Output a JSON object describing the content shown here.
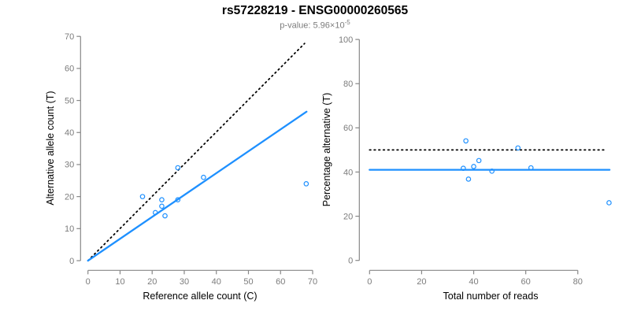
{
  "header": {
    "title": "rs57228219 - ENSG00000260565",
    "pvalue_label": "p-value: 5.96×10",
    "pvalue_exponent": "-5"
  },
  "colors": {
    "accent_blue": "#1E90FF",
    "line_black": "#000000",
    "axis_gray": "#878787",
    "tick_label_gray": "#7c7c7c"
  },
  "chart_data": [
    {
      "type": "scatter",
      "xlabel": "Reference allele count (C)",
      "ylabel": "Alternative allele count (T)",
      "xlim": [
        0,
        70
      ],
      "ylim": [
        0,
        70
      ],
      "xticks": [
        0,
        10,
        20,
        30,
        40,
        50,
        60,
        70
      ],
      "yticks": [
        0,
        10,
        20,
        30,
        40,
        50,
        60,
        70
      ],
      "grid": false,
      "legend": false,
      "point_color": "#1E90FF",
      "points": [
        [
          17,
          20
        ],
        [
          21,
          15
        ],
        [
          23,
          17
        ],
        [
          23,
          19
        ],
        [
          24,
          14
        ],
        [
          28,
          19
        ],
        [
          28,
          29
        ],
        [
          36,
          26
        ],
        [
          68,
          24
        ]
      ],
      "lines": [
        {
          "name": "identity-line",
          "style": "dotted",
          "color": "#000000",
          "x1": 0,
          "y1": 0,
          "x2": 67.5,
          "y2": 67.8
        },
        {
          "name": "fit-line",
          "style": "solid",
          "color": "#1E90FF",
          "x1": 0,
          "y1": 0,
          "x2": 68.1,
          "y2": 46.5
        }
      ]
    },
    {
      "type": "scatter",
      "xlabel": "Total number of reads",
      "ylabel": "Percentage alternative (T)",
      "xlim": [
        0,
        93
      ],
      "ylim": [
        0,
        100
      ],
      "xticks": [
        0,
        20,
        40,
        60,
        80
      ],
      "yticks": [
        0,
        20,
        40,
        60,
        80,
        100
      ],
      "grid": false,
      "legend": false,
      "point_color": "#1E90FF",
      "points": [
        [
          37,
          54.1
        ],
        [
          36,
          41.7
        ],
        [
          40,
          42.5
        ],
        [
          42,
          45.2
        ],
        [
          38,
          36.8
        ],
        [
          47,
          40.4
        ],
        [
          57,
          50.9
        ],
        [
          62,
          41.9
        ],
        [
          92,
          26.1
        ]
      ],
      "lines": [
        {
          "name": "fifty-percent-line",
          "style": "dotted",
          "color": "#000000",
          "x1": 0,
          "y1": 50,
          "x2": 90.7,
          "y2": 50
        },
        {
          "name": "mean-percentage-line",
          "style": "solid",
          "color": "#1E90FF",
          "x1": 0,
          "y1": 41,
          "x2": 92.2,
          "y2": 41
        }
      ]
    }
  ]
}
